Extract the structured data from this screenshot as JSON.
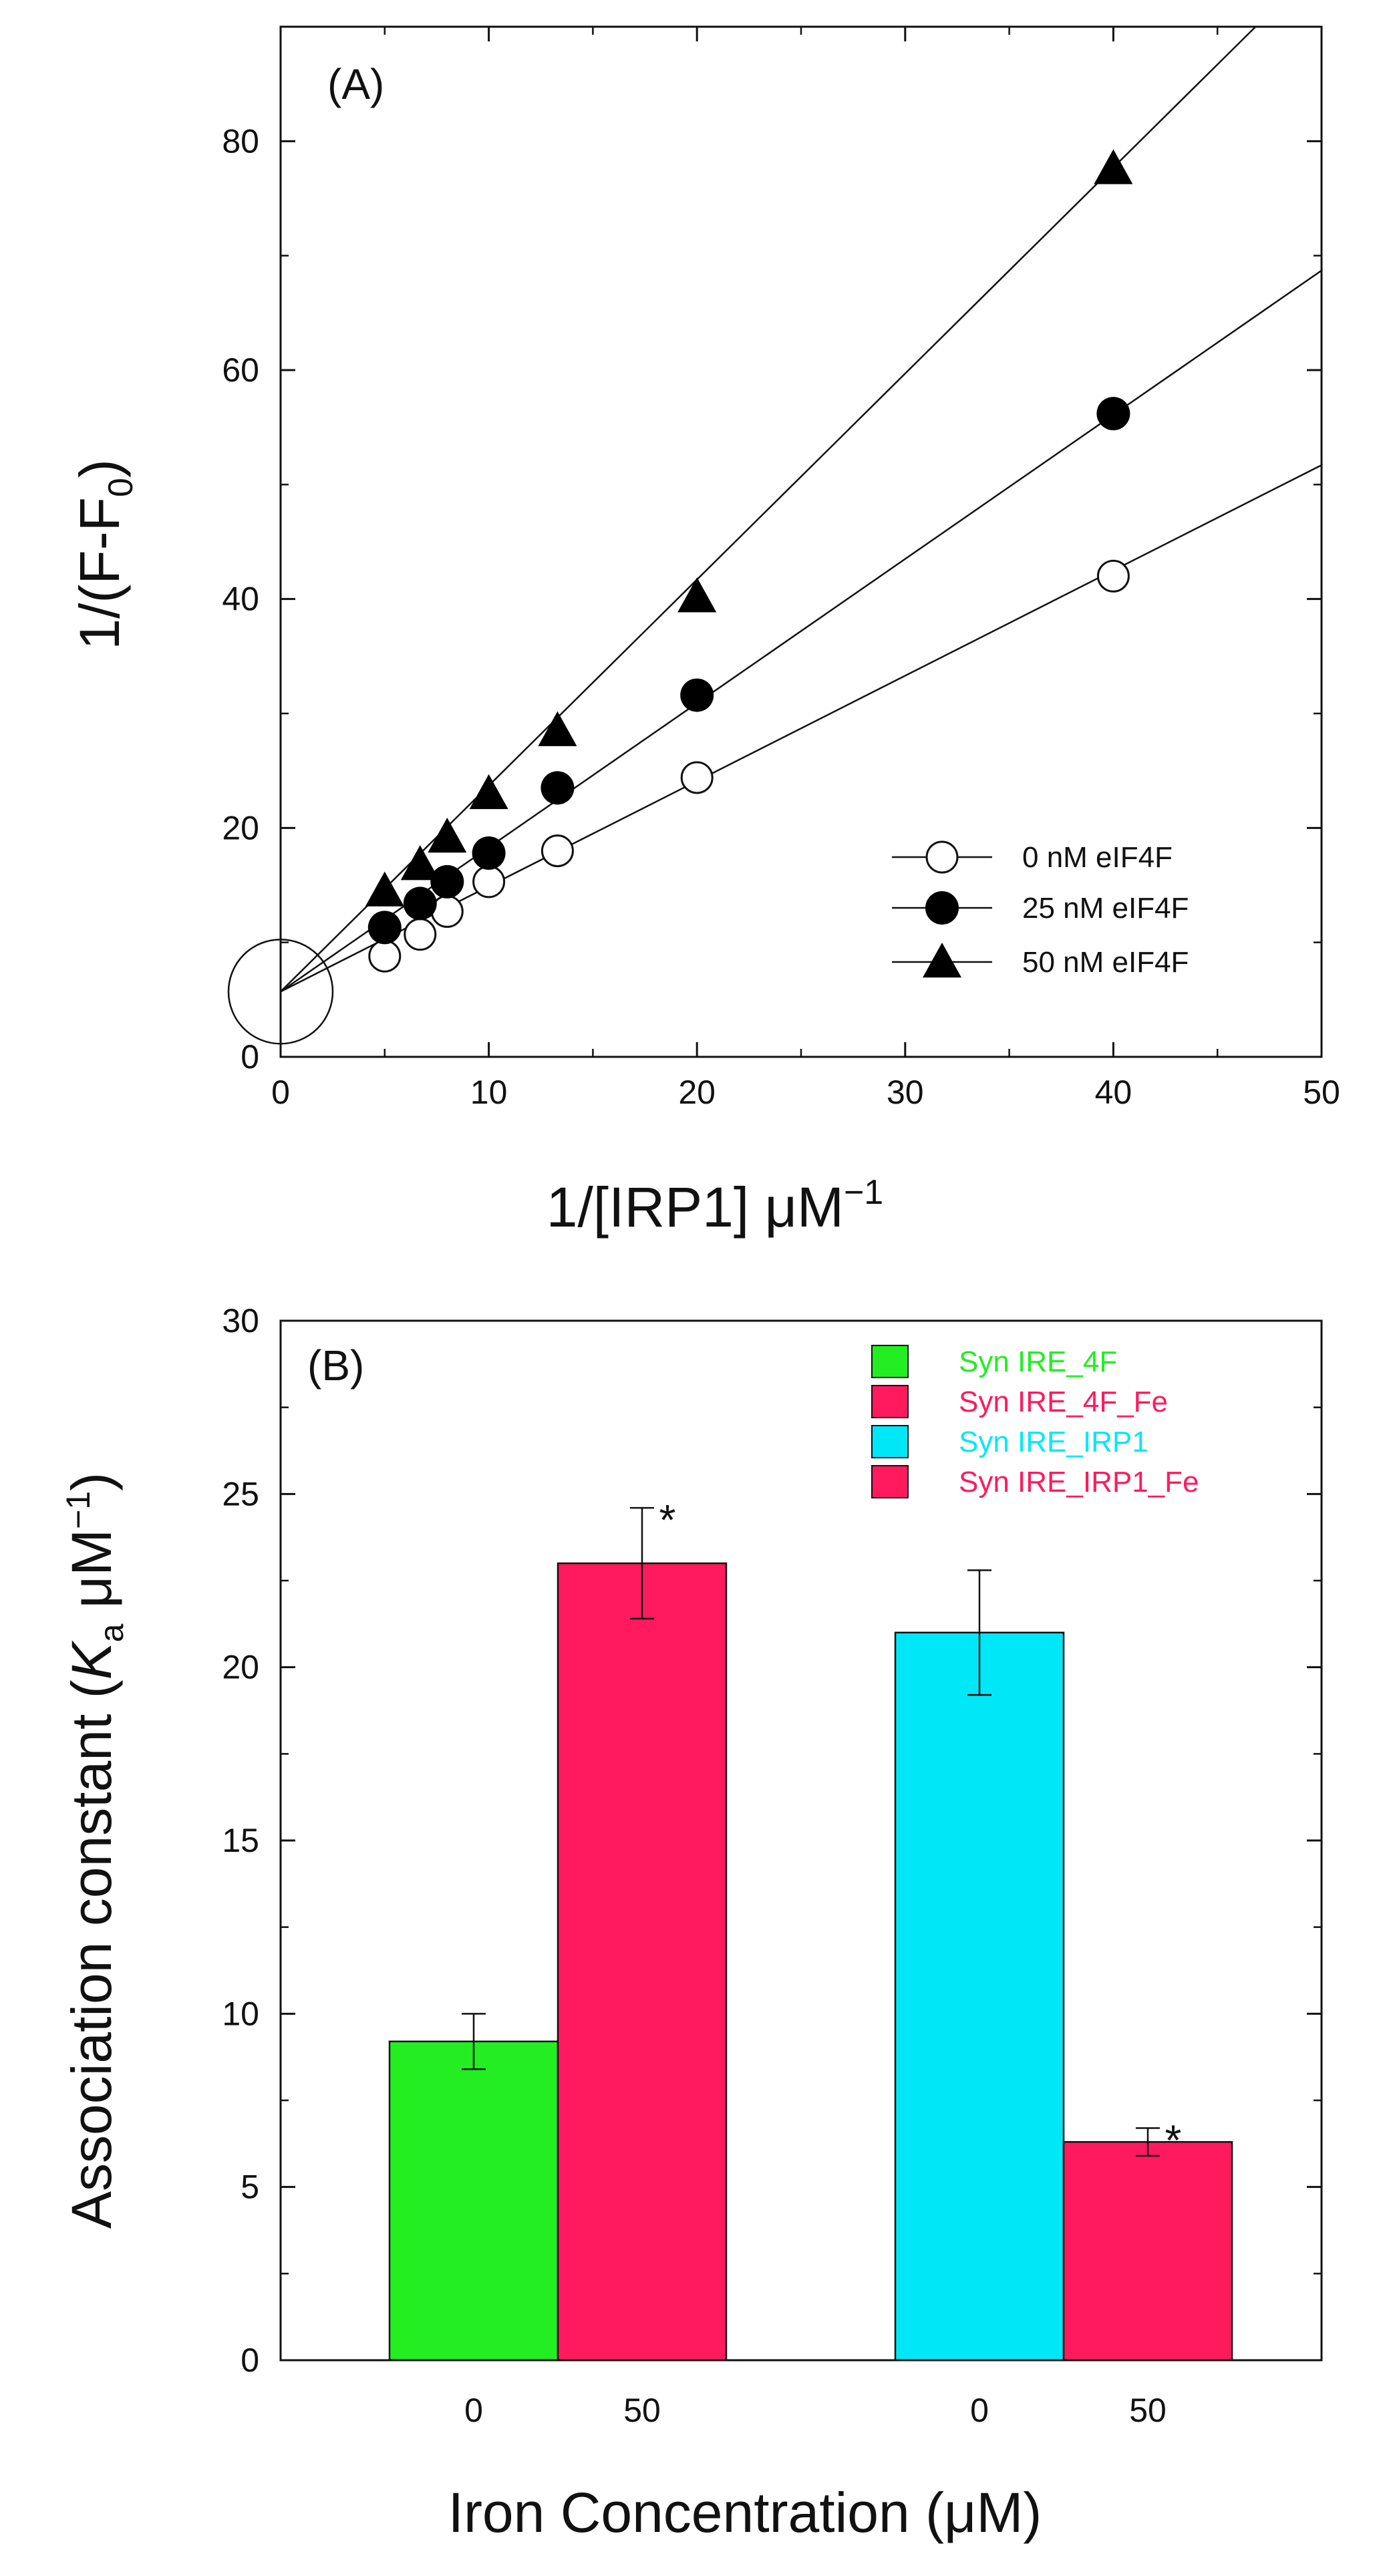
{
  "chart_data": [
    {
      "type": "scatter",
      "panel_label": "(A)",
      "xlabel": "1/[IRP1] μM",
      "xlabel_sup": "−1",
      "ylabel": "1/(F-F",
      "ylabel_sub": "0",
      "ylabel_end": ")",
      "xlim": [
        0,
        50
      ],
      "ylim": [
        0,
        90
      ],
      "xticks": [
        0,
        10,
        20,
        30,
        40,
        50
      ],
      "yticks": [
        0,
        20,
        40,
        60,
        80
      ],
      "grid": false,
      "legend_position": "bottom-right",
      "annotation": "open circle marking common y-intercept near (0, 5.7)",
      "series": [
        {
          "name": "0 nM eIF4F",
          "marker": "open-circle",
          "x": [
            5,
            6.7,
            8,
            10,
            13.3,
            20,
            40
          ],
          "y": [
            8.8,
            10.7,
            12.7,
            15.3,
            18.0,
            24.4,
            42.0
          ],
          "fit": {
            "intercept": 5.7,
            "slope": 0.92
          }
        },
        {
          "name": "25 nM eIF4F",
          "marker": "filled-circle",
          "x": [
            5,
            6.7,
            8,
            10,
            13.3,
            20,
            40
          ],
          "y": [
            11.3,
            13.4,
            15.3,
            17.8,
            23.5,
            31.6,
            56.2
          ],
          "fit": {
            "intercept": 5.7,
            "slope": 1.26
          }
        },
        {
          "name": "50 nM eIF4F",
          "marker": "filled-triangle",
          "x": [
            5,
            6.7,
            8,
            10,
            13.3,
            20,
            40
          ],
          "y": [
            14.5,
            16.8,
            19.2,
            23.0,
            28.5,
            40.2,
            77.6
          ],
          "fit": {
            "intercept": 5.7,
            "slope": 1.8
          }
        }
      ]
    },
    {
      "type": "bar",
      "panel_label": "(B)",
      "xlabel": "Iron Concentration (μM)",
      "ylabel": "Association constant (",
      "ylabel_italic": "K",
      "ylabel_sub": "a",
      "ylabel_unit": " μM",
      "ylabel_sup": "−1",
      "ylabel_end": ")",
      "ylim": [
        0,
        30
      ],
      "yticks": [
        0,
        5,
        10,
        15,
        20,
        25,
        30
      ],
      "categories": [
        "0",
        "50",
        "0",
        "50"
      ],
      "grid": false,
      "legend_position": "top-right",
      "series": [
        {
          "name": "Syn IRE_4F",
          "color": "#22EE22",
          "value": 9.2,
          "error": 0.8,
          "significant": false
        },
        {
          "name": "Syn IRE_4F_Fe",
          "color": "#FF1A5E",
          "value": 23.0,
          "error": 1.6,
          "significant": true
        },
        {
          "name": "Syn IRE_IRP1",
          "color": "#00E8F8",
          "value": 21.0,
          "error": 1.8,
          "significant": false
        },
        {
          "name": "Syn IRE_IRP1_Fe",
          "color": "#FF1A5E",
          "value": 6.3,
          "error": 0.4,
          "significant": true
        }
      ],
      "significance_marker": "*"
    }
  ]
}
